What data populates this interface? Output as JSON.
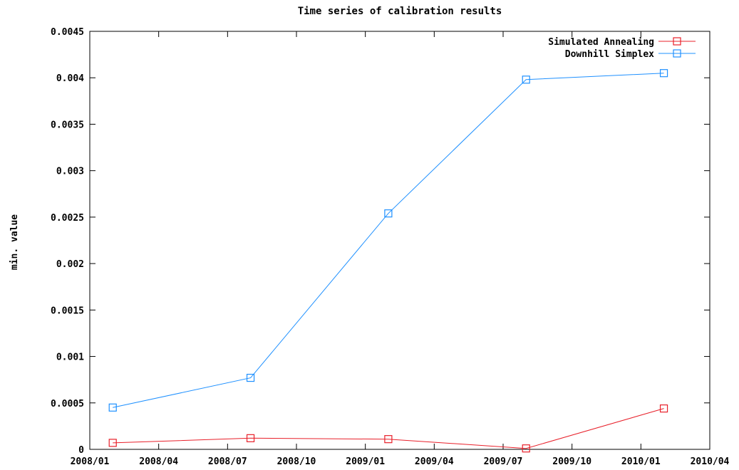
{
  "chart_data": {
    "type": "line",
    "title": "Time series of calibration results",
    "xlabel": "",
    "ylabel": "min. value",
    "x_axis_type": "date",
    "xlim": [
      "2008-01",
      "2010-04"
    ],
    "ylim": [
      0,
      0.0045
    ],
    "x_tick_labels": [
      "2008/01",
      "2008/04",
      "2008/07",
      "2008/10",
      "2009/01",
      "2009/04",
      "2009/07",
      "2009/10",
      "2010/01",
      "2010/04"
    ],
    "y_tick_labels": [
      "0",
      "0.0005",
      "0.001",
      "0.0015",
      "0.002",
      "0.0025",
      "0.003",
      "0.0035",
      "0.004",
      "0.0045"
    ],
    "grid": false,
    "legend_position": "top-right",
    "series": [
      {
        "name": "Simulated Annealing",
        "color": "#e8202a",
        "marker": "square",
        "x": [
          "2008-02-01",
          "2008-08-01",
          "2009-02-01",
          "2009-08-01",
          "2010-02-01"
        ],
        "y": [
          7e-05,
          0.00012,
          0.00011,
          1e-05,
          0.00044
        ]
      },
      {
        "name": "Downhill Simplex",
        "color": "#1e90ff",
        "marker": "square",
        "x": [
          "2008-02-01",
          "2008-08-01",
          "2009-02-01",
          "2009-08-01",
          "2010-02-01"
        ],
        "y": [
          0.00045,
          0.00077,
          0.00254,
          0.00398,
          0.00405
        ]
      }
    ]
  }
}
